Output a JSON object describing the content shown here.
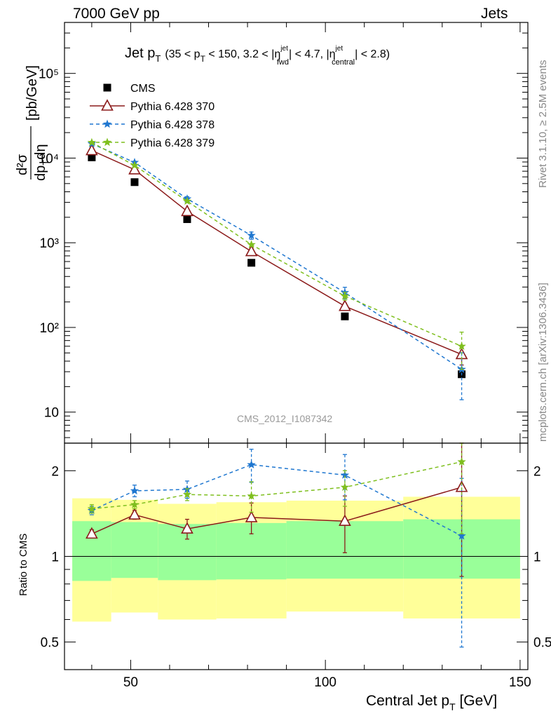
{
  "header": {
    "left": "7000 GeV pp",
    "right": "Jets"
  },
  "side_text": {
    "rivet": "Rivet 3.1.10, ≥ 2.5M events",
    "source": "mcplots.cern.ch [arXiv:1306.3436]"
  },
  "watermark": "CMS_2012_I1087342",
  "chart_data": [
    {
      "type": "scatter",
      "panel": "main",
      "title_text": {
        "name": "Jet p",
        "name_sub": "T",
        "cut1": "(35 < p",
        "cut1_sub": "T",
        "cut2": " < 150, 3.2 < |η",
        "cut2_sup": "jet",
        "cut2_sub": "fwd",
        "cut3": "| < 4.7, |η",
        "cut3_sup": "jet",
        "cut3_sub": "central",
        "cut4": "| < 2.8)"
      },
      "ylabel": {
        "num": "d²σ",
        "den_a": "dp",
        "den_sub": "T",
        "den_b": "dη",
        "unit": "[pb/GeV]"
      },
      "yscale": "log",
      "ylim": [
        4.3,
        400000
      ],
      "xlim": [
        33,
        152
      ],
      "yticks": [
        {
          "v": 10,
          "label": "10"
        },
        {
          "v": 100,
          "label": "10²"
        },
        {
          "v": 1000,
          "label": "10³"
        },
        {
          "v": 10000,
          "label": "10⁴"
        },
        {
          "v": 100000,
          "label": "10⁵"
        }
      ],
      "legend_position": "top-left",
      "series": [
        {
          "name": "CMS",
          "color": "#000000",
          "style": "square",
          "x": [
            40,
            51,
            64.5,
            81,
            105,
            135
          ],
          "y": [
            10200,
            5200,
            1900,
            580,
            135,
            28
          ]
        },
        {
          "name": "Pythia 6.428 370",
          "color": "#8b1a1a",
          "style": "triangle-solid",
          "x": [
            40,
            51,
            64.5,
            81,
            105,
            135
          ],
          "y": [
            12300,
            7300,
            2350,
            790,
            178,
            48
          ],
          "err": [
            0,
            0,
            0,
            0,
            15,
            12
          ]
        },
        {
          "name": "Pythia 6.428 378",
          "color": "#1f77d0",
          "style": "star-dashed",
          "x": [
            40,
            51,
            64.5,
            81,
            105,
            135
          ],
          "y": [
            14800,
            8900,
            3300,
            1220,
            258,
            32
          ],
          "err": [
            0,
            0,
            200,
            120,
            40,
            18
          ]
        },
        {
          "name": "Pythia 6.428 379",
          "color": "#7fbf1f",
          "style": "star-dashed",
          "x": [
            40,
            51,
            64.5,
            81,
            105,
            135
          ],
          "y": [
            15300,
            8200,
            3100,
            950,
            235,
            60
          ],
          "err": [
            0,
            0,
            0,
            0,
            25,
            28
          ]
        }
      ]
    },
    {
      "type": "scatter",
      "panel": "ratio",
      "ylabel": "Ratio to CMS",
      "yscale": "log",
      "ylim": [
        0.4,
        2.5
      ],
      "xlim": [
        33,
        152
      ],
      "yticks": [
        {
          "v": 0.5,
          "label": "0.5"
        },
        {
          "v": 1,
          "label": "1"
        },
        {
          "v": 2,
          "label": "2"
        }
      ],
      "xticks": [
        {
          "v": 50,
          "label": "50"
        },
        {
          "v": 100,
          "label": "100"
        },
        {
          "v": 150,
          "label": "150"
        }
      ],
      "xlabel": {
        "a": "Central Jet p",
        "sub": "T",
        "b": " [GeV]"
      },
      "bands": {
        "edges": [
          35,
          45,
          57,
          72,
          90,
          120,
          150
        ],
        "outer_lo": [
          0.59,
          0.635,
          0.6,
          0.605,
          0.64,
          0.605
        ],
        "outer_hi": [
          1.6,
          1.58,
          1.53,
          1.55,
          1.57,
          1.62
        ],
        "inner_lo": [
          0.82,
          0.84,
          0.825,
          0.83,
          0.835,
          0.835
        ],
        "inner_hi": [
          1.33,
          1.32,
          1.3,
          1.31,
          1.33,
          1.35
        ],
        "outer_color": "#ffff99",
        "inner_color": "#99ff99"
      },
      "series": [
        {
          "name": "Pythia 6.428 370",
          "color": "#8b1a1a",
          "style": "triangle-solid",
          "x": [
            40,
            51,
            64.5,
            81,
            105,
            135
          ],
          "y": [
            1.2,
            1.4,
            1.25,
            1.37,
            1.33,
            1.75
          ],
          "err": [
            0.04,
            0.05,
            0.1,
            0.17,
            0.3,
            0.9
          ]
        },
        {
          "name": "Pythia 6.428 378",
          "color": "#1f77d0",
          "style": "star-dashed",
          "x": [
            40,
            51,
            64.5,
            81,
            105,
            135
          ],
          "y": [
            1.45,
            1.7,
            1.72,
            2.1,
            1.93,
            1.18
          ],
          "err": [
            0.05,
            0.08,
            0.12,
            0.28,
            0.35,
            0.7
          ]
        },
        {
          "name": "Pythia 6.428 379",
          "color": "#7fbf1f",
          "style": "star-dashed",
          "x": [
            40,
            51,
            64.5,
            81,
            105,
            135
          ],
          "y": [
            1.47,
            1.52,
            1.65,
            1.63,
            1.75,
            2.15
          ],
          "err": [
            0.05,
            0.05,
            0.08,
            0.2,
            0.25,
            0.95
          ]
        }
      ]
    }
  ]
}
